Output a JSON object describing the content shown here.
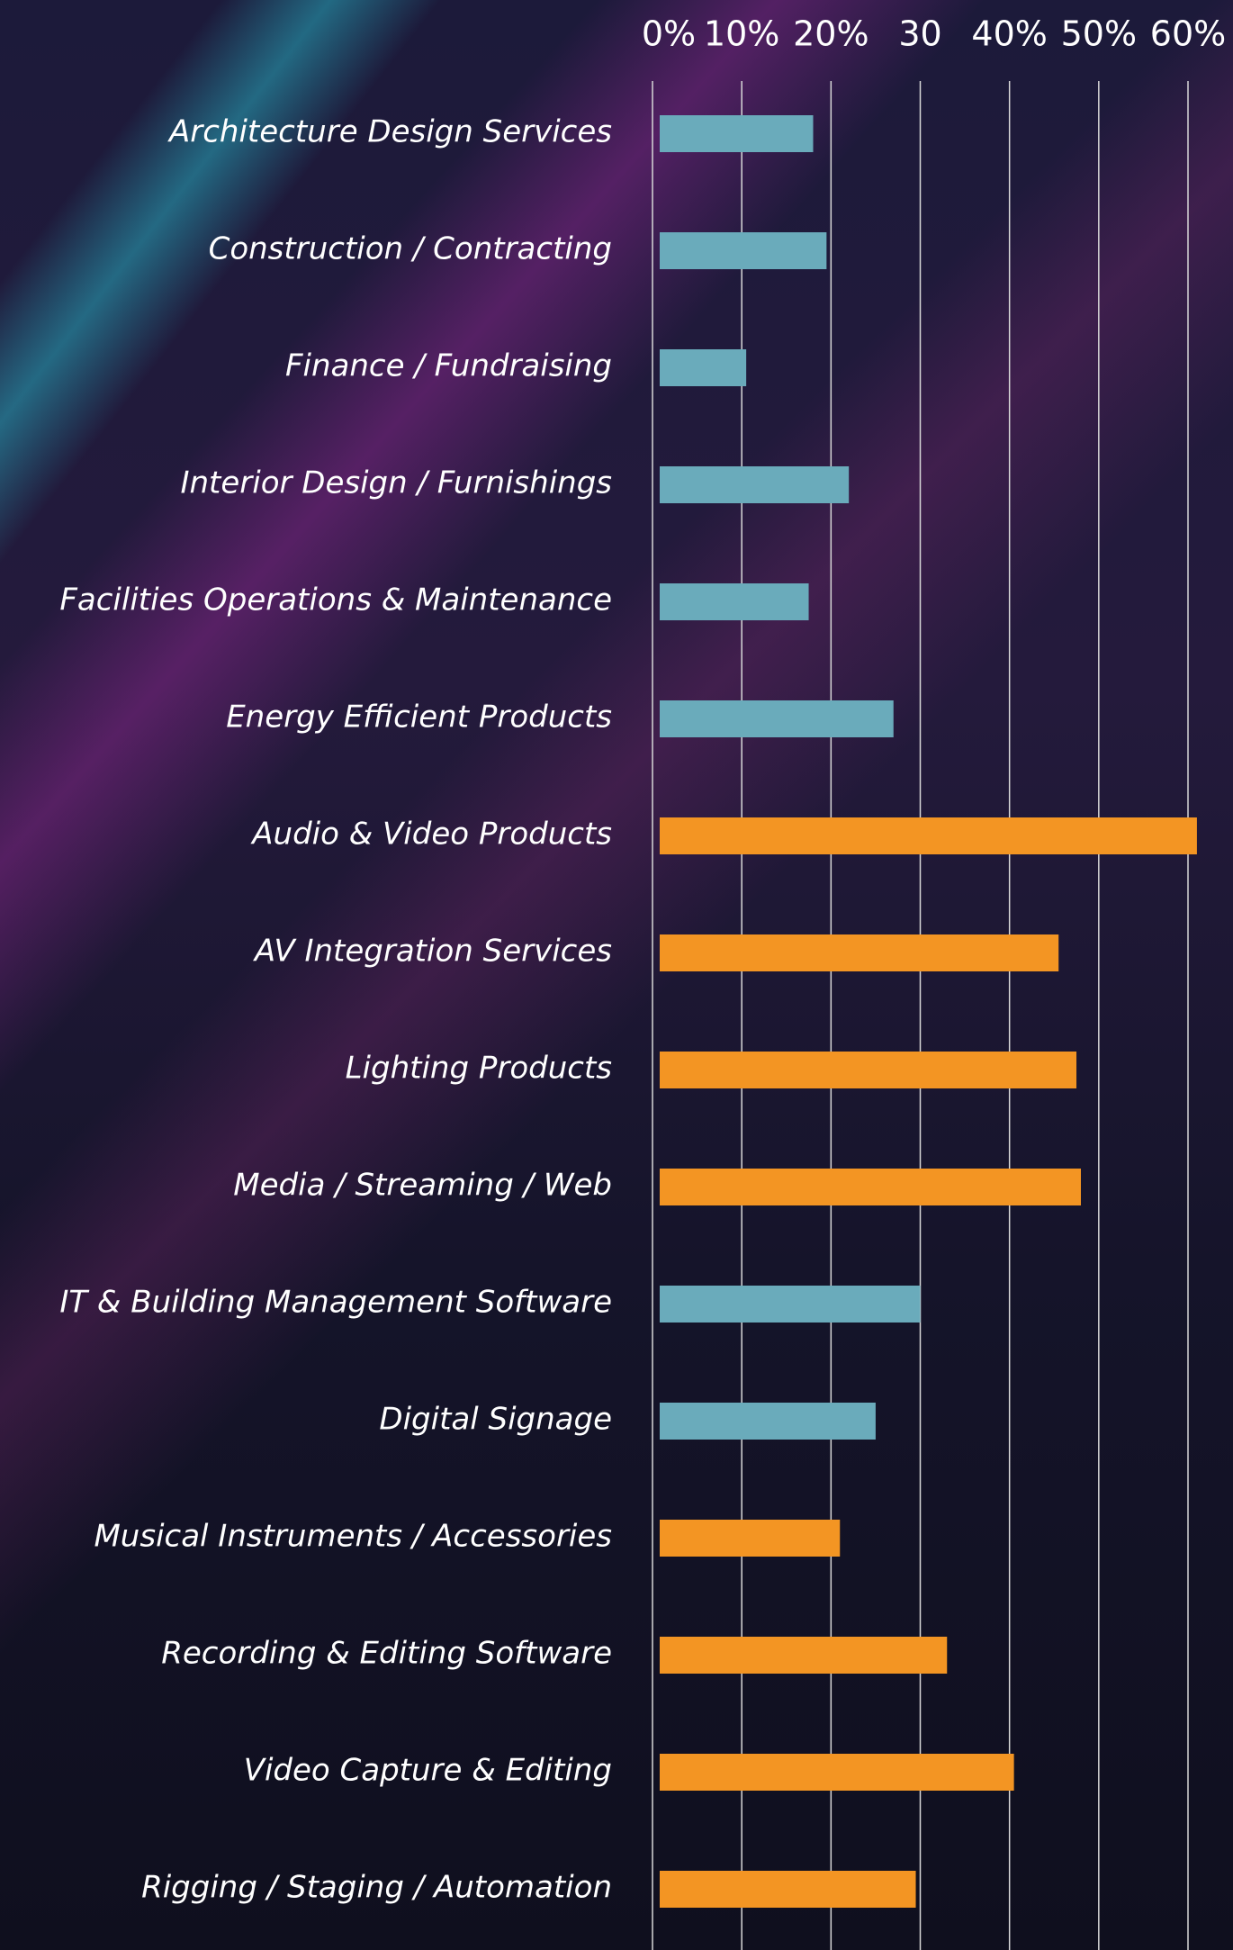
{
  "chart_data": {
    "type": "bar",
    "orientation": "horizontal",
    "categories": [
      "Architecture Design Services",
      "Construction / Contracting",
      "Finance / Fundraising",
      "Interior Design / Furnishings",
      "Facilities Operations & Maintenance",
      "Energy Efficient Products",
      "Audio & Video Products",
      "AV Integration Services",
      "Lighting Products",
      "Media / Streaming / Web",
      "IT & Building Management Software",
      "Digital Signage",
      "Musical Instruments / Accessories",
      "Recording & Editing Software",
      "Video Capture & Editing",
      "Rigging / Staging / Automation"
    ],
    "values": [
      18,
      19.5,
      10.5,
      22,
      17.5,
      27,
      61,
      45.5,
      47.5,
      48,
      30,
      25,
      21,
      33,
      40.5,
      29.5
    ],
    "colors": [
      "#6aabbb",
      "#6aabbb",
      "#6aabbb",
      "#6aabbb",
      "#6aabbb",
      "#6aabbb",
      "#f39523",
      "#f39523",
      "#f39523",
      "#f39523",
      "#6aabbb",
      "#6aabbb",
      "#f39523",
      "#f39523",
      "#f39523",
      "#f39523"
    ],
    "xlim": [
      0,
      60
    ],
    "xticks": [
      {
        "value": 0,
        "label": "0%"
      },
      {
        "value": 10,
        "label": "10%"
      },
      {
        "value": 20,
        "label": "20%"
      },
      30,
      {
        "value": 40,
        "label": "40%"
      },
      {
        "value": 50,
        "label": "50%"
      },
      {
        "value": 60,
        "label": "60%"
      }
    ],
    "grid": true
  }
}
